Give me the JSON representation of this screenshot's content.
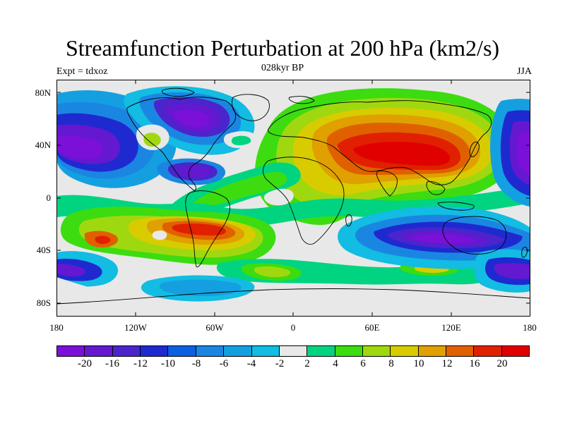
{
  "title": "Streamfunction Perturbation at 200 hPa (km2/s)",
  "subtitle_left": "Expt = tdxoz",
  "subtitle_center": "028kyr BP",
  "subtitle_right": "JJA",
  "lat_labels": [
    "80N",
    "40N",
    "0",
    "40S",
    "80S"
  ],
  "lon_labels": [
    "180",
    "120W",
    "60W",
    "0",
    "60E",
    "120E",
    "180"
  ],
  "colorbar": {
    "colors": [
      "#7b10d8",
      "#6418d0",
      "#4c24cc",
      "#1e2ad0",
      "#0a60e0",
      "#1a86e2",
      "#14a0e0",
      "#12bce2",
      "#e8e8e8",
      "#00d480",
      "#3cdc10",
      "#a0d810",
      "#d8cc00",
      "#e0a000",
      "#e06000",
      "#e02000",
      "#e00000"
    ],
    "labels": [
      "-20",
      "-16",
      "-12",
      "-10",
      "-8",
      "-6",
      "-4",
      "-2",
      "2",
      "4",
      "6",
      "8",
      "10",
      "12",
      "16",
      "20"
    ]
  },
  "palette": {
    "neutral": "#e8e8e8",
    "land_outline": "#000000"
  }
}
